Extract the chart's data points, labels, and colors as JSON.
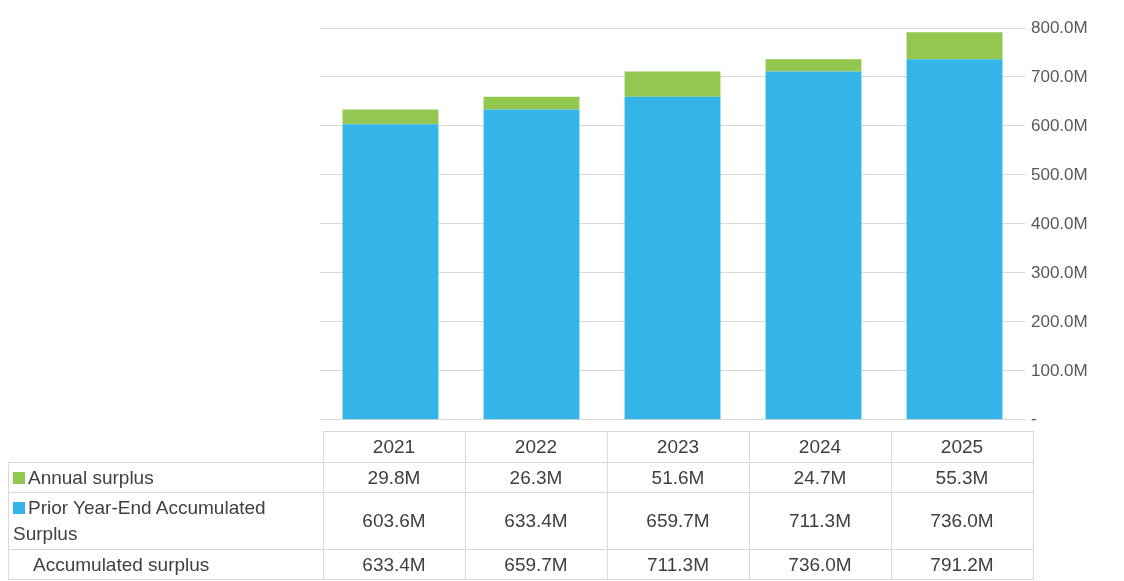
{
  "chart_data": {
    "type": "bar",
    "stacked": true,
    "categories": [
      "2021",
      "2022",
      "2023",
      "2024",
      "2025"
    ],
    "series": [
      {
        "name": "Prior Year-End Accumulated Surplus",
        "color": "#35b4e8",
        "values": [
          603.6,
          633.4,
          659.7,
          711.3,
          736.0
        ],
        "value_labels": [
          "603.6M",
          "633.4M",
          "659.7M",
          "711.3M",
          "736.0M"
        ]
      },
      {
        "name": "Annual surplus",
        "color": "#92c84f",
        "values": [
          29.8,
          26.3,
          51.6,
          24.7,
          55.3
        ],
        "value_labels": [
          "29.8M",
          "26.3M",
          "51.6M",
          "24.7M",
          "55.3M"
        ]
      }
    ],
    "annotations": [
      "Accumulated surplus",
      "633.4M",
      "659.7M",
      "711.3M",
      "736.0M",
      "791.2M"
    ],
    "ylim": [
      0,
      800
    ],
    "yticks": [
      {
        "value": 0,
        "label": "-"
      },
      {
        "value": 100,
        "label": "100.0M"
      },
      {
        "value": 200,
        "label": "200.0M"
      },
      {
        "value": 300,
        "label": "300.0M"
      },
      {
        "value": 400,
        "label": "400.0M"
      },
      {
        "value": 500,
        "label": "500.0M"
      },
      {
        "value": 600,
        "label": "600.0M"
      },
      {
        "value": 700,
        "label": "700.0M"
      },
      {
        "value": 800,
        "label": "800.0M"
      }
    ],
    "grid": "y",
    "legend": "bottom"
  }
}
